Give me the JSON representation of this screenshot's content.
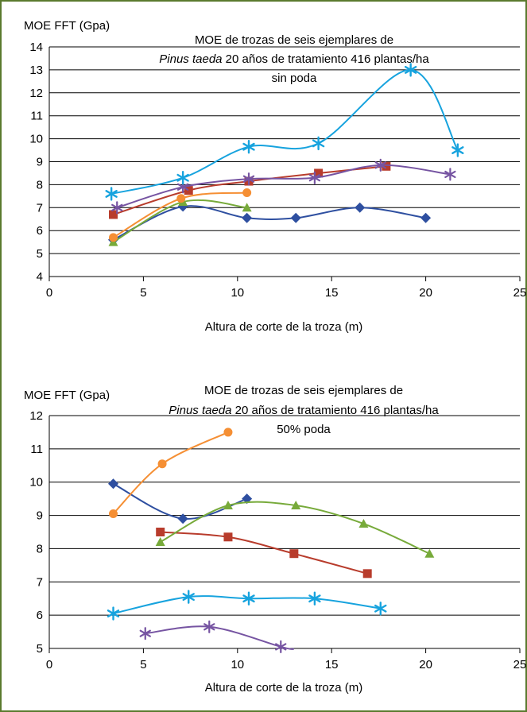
{
  "colors": {
    "border": "#5a7a2e",
    "blue_diamond": "#2e4fa0",
    "red_square": "#b83c2c",
    "green_triangle": "#77aa3a",
    "purple_star": "#7654a2",
    "cyan_asterisk": "#17a3de",
    "orange_circle": "#f58f34"
  },
  "chart_data": [
    {
      "type": "line",
      "smooth": true,
      "ylabel": "MOE FFT (Gpa)",
      "xlabel": "Altura de corte de la troza (m)",
      "title_lines": [
        {
          "text": "MOE de trozas de seis ejemplares de"
        },
        {
          "italic": "Pinus taeda",
          "text": " 20 años de tratamiento 416 plantas/ha"
        },
        {
          "text": "sin poda"
        }
      ],
      "xlim": [
        0,
        25
      ],
      "ylim": [
        4,
        14
      ],
      "xticks": [
        0,
        5,
        10,
        15,
        20,
        25
      ],
      "yticks": [
        4,
        5,
        6,
        7,
        8,
        9,
        10,
        11,
        12,
        13,
        14
      ],
      "grid": "horizontal",
      "series": [
        {
          "marker": "diamond",
          "color": "#2e4fa0",
          "x": [
            3.4,
            7.1,
            10.5,
            13.1,
            16.5,
            20
          ],
          "y": [
            5.6,
            7.05,
            6.55,
            6.55,
            7.0,
            6.55
          ]
        },
        {
          "marker": "square",
          "color": "#b83c2c",
          "x": [
            3.4,
            7.4,
            10.6,
            14.3,
            17.9
          ],
          "y": [
            6.7,
            7.75,
            8.15,
            8.5,
            8.8
          ]
        },
        {
          "marker": "triangle",
          "color": "#77aa3a",
          "x": [
            3.4,
            7.1,
            10.5
          ],
          "y": [
            5.5,
            7.25,
            7.0
          ]
        },
        {
          "marker": "star",
          "color": "#7654a2",
          "x": [
            3.6,
            7.1,
            10.6,
            14.1,
            17.6,
            21.3
          ],
          "y": [
            7.0,
            7.9,
            8.25,
            8.3,
            8.85,
            8.45
          ]
        },
        {
          "marker": "asterisk",
          "color": "#17a3de",
          "x": [
            3.3,
            7.1,
            10.6,
            14.3,
            19.2,
            21.7
          ],
          "y": [
            7.6,
            8.3,
            9.65,
            9.8,
            13.0,
            9.5
          ]
        },
        {
          "marker": "circle",
          "color": "#f58f34",
          "x": [
            3.4,
            7.0,
            10.5
          ],
          "y": [
            5.7,
            7.4,
            7.65
          ]
        }
      ]
    },
    {
      "type": "line",
      "smooth": true,
      "ylabel": "MOE FFT (Gpa)",
      "xlabel": "Altura de corte de la troza (m)",
      "title_lines": [
        {
          "text": "MOE de trozas de seis ejemplares de"
        },
        {
          "italic": "Pinus taeda",
          "text": " 20 años de tratamiento 416 plantas/ha"
        },
        {
          "text": "50% poda"
        }
      ],
      "xlim": [
        0,
        25
      ],
      "ylim": [
        5,
        12
      ],
      "xticks": [
        0,
        5,
        10,
        15,
        20,
        25
      ],
      "yticks": [
        5,
        6,
        7,
        8,
        9,
        10,
        11,
        12
      ],
      "grid": "horizontal",
      "series": [
        {
          "marker": "diamond",
          "color": "#2e4fa0",
          "x": [
            3.4,
            7.1,
            10.5
          ],
          "y": [
            9.95,
            8.9,
            9.5
          ]
        },
        {
          "marker": "square",
          "color": "#b83c2c",
          "x": [
            5.9,
            9.5,
            13.0,
            16.9
          ],
          "y": [
            8.5,
            8.35,
            7.85,
            7.25
          ]
        },
        {
          "marker": "triangle",
          "color": "#77aa3a",
          "x": [
            5.9,
            9.5,
            13.1,
            16.7,
            20.2
          ],
          "y": [
            8.2,
            9.3,
            9.3,
            8.75,
            7.85
          ]
        },
        {
          "marker": "star",
          "color": "#7654a2",
          "x": [
            5.1,
            8.5,
            12.3,
            13.0
          ],
          "y": [
            5.45,
            5.65,
            5.05,
            4.98
          ]
        },
        {
          "marker": "asterisk",
          "color": "#17a3de",
          "x": [
            3.4,
            7.4,
            10.6,
            14.1,
            17.6
          ],
          "y": [
            6.05,
            6.55,
            6.5,
            6.5,
            6.2
          ]
        },
        {
          "marker": "circle",
          "color": "#f58f34",
          "x": [
            3.4,
            6.0,
            9.5
          ],
          "y": [
            9.05,
            10.55,
            11.5
          ]
        }
      ]
    }
  ]
}
